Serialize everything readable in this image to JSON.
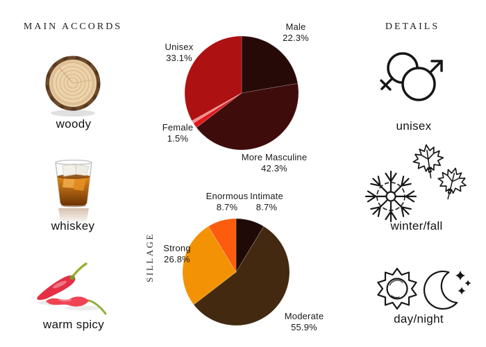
{
  "left_panel": {
    "header": "MAIN ACCORDS",
    "accords": [
      {
        "label": "woody",
        "icon": "wood-slice-image"
      },
      {
        "label": "whiskey",
        "icon": "whiskey-glass-image"
      },
      {
        "label": "warm spicy",
        "icon": "chili-peppers-image"
      }
    ]
  },
  "right_panel": {
    "header": "DETAILS",
    "details": [
      {
        "label": "unisex",
        "icon": "gender-unisex-icon"
      },
      {
        "label": "winter/fall",
        "icon": "snowflake-maple-leaves-icon"
      },
      {
        "label": "day/night",
        "icon": "sun-moon-icon"
      }
    ]
  },
  "chart_data": [
    {
      "type": "pie",
      "name": "gender-votes",
      "start_at": "top",
      "direction": "clockwise",
      "slices": [
        {
          "label": "Male",
          "value": 22.3,
          "pct": "22.3%",
          "color": "#260a08"
        },
        {
          "label": "More Masculine",
          "value": 42.3,
          "pct": "42.3%",
          "color": "#3f0c0c"
        },
        {
          "label": "Female",
          "value": 1.5,
          "pct": "1.5%",
          "color": "#e2191c"
        },
        {
          "label": "",
          "value": 0.8,
          "pct": "",
          "color": "#ef8e8e"
        },
        {
          "label": "Unisex",
          "value": 33.1,
          "pct": "33.1%",
          "color": "#ae1111"
        }
      ]
    },
    {
      "type": "pie",
      "name": "sillage",
      "ylabel": "SILLAGE",
      "start_at": "top",
      "direction": "clockwise",
      "slices": [
        {
          "label": "Intimate",
          "value": 8.7,
          "pct": "8.7%",
          "color": "#200a07"
        },
        {
          "label": "Moderate",
          "value": 55.9,
          "pct": "55.9%",
          "color": "#42290f"
        },
        {
          "label": "Strong",
          "value": 26.8,
          "pct": "26.8%",
          "color": "#f39204"
        },
        {
          "label": "Enormous",
          "value": 8.7,
          "pct": "8.7%",
          "color": "#fb5c0d"
        }
      ]
    }
  ]
}
